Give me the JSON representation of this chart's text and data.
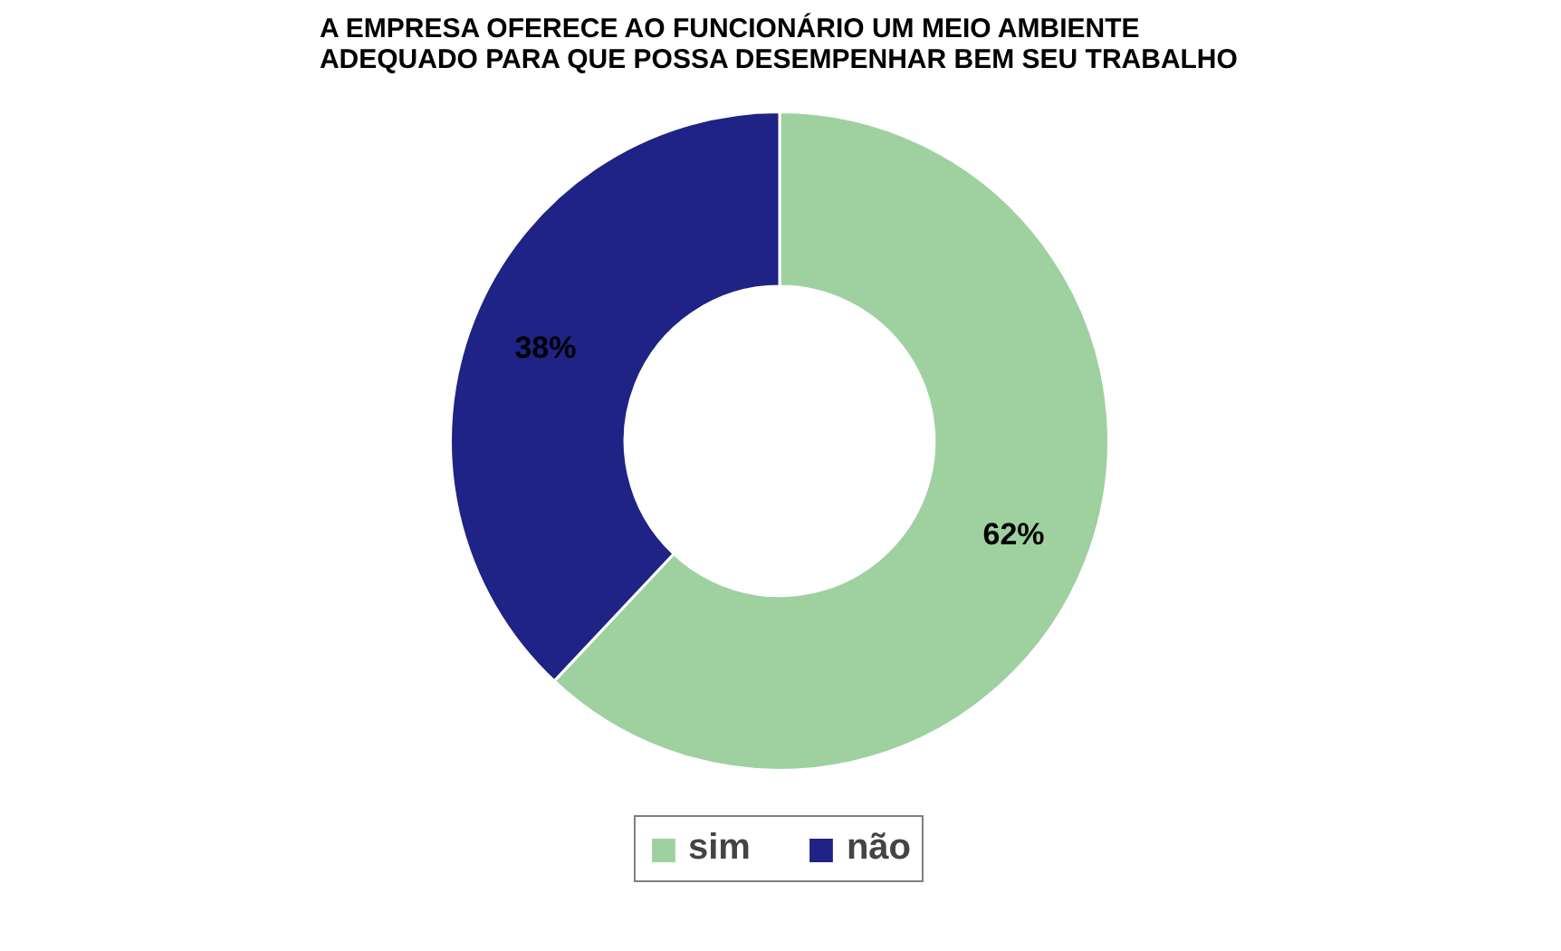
{
  "chart_data": {
    "type": "donut",
    "title": "A EMPRESA OFERECE AO FUNCIONÁRIO UM MEIO AMBIENTE\nADEQUADO PARA QUE POSSA DESEMPENHAR BEM SEU TRABALHO",
    "categories": [
      "sim",
      "não"
    ],
    "values": [
      62,
      38
    ],
    "colors": [
      "#9fd0a0",
      "#1e2385"
    ],
    "value_labels": [
      "62%",
      "38%"
    ],
    "legend": "bottom"
  }
}
